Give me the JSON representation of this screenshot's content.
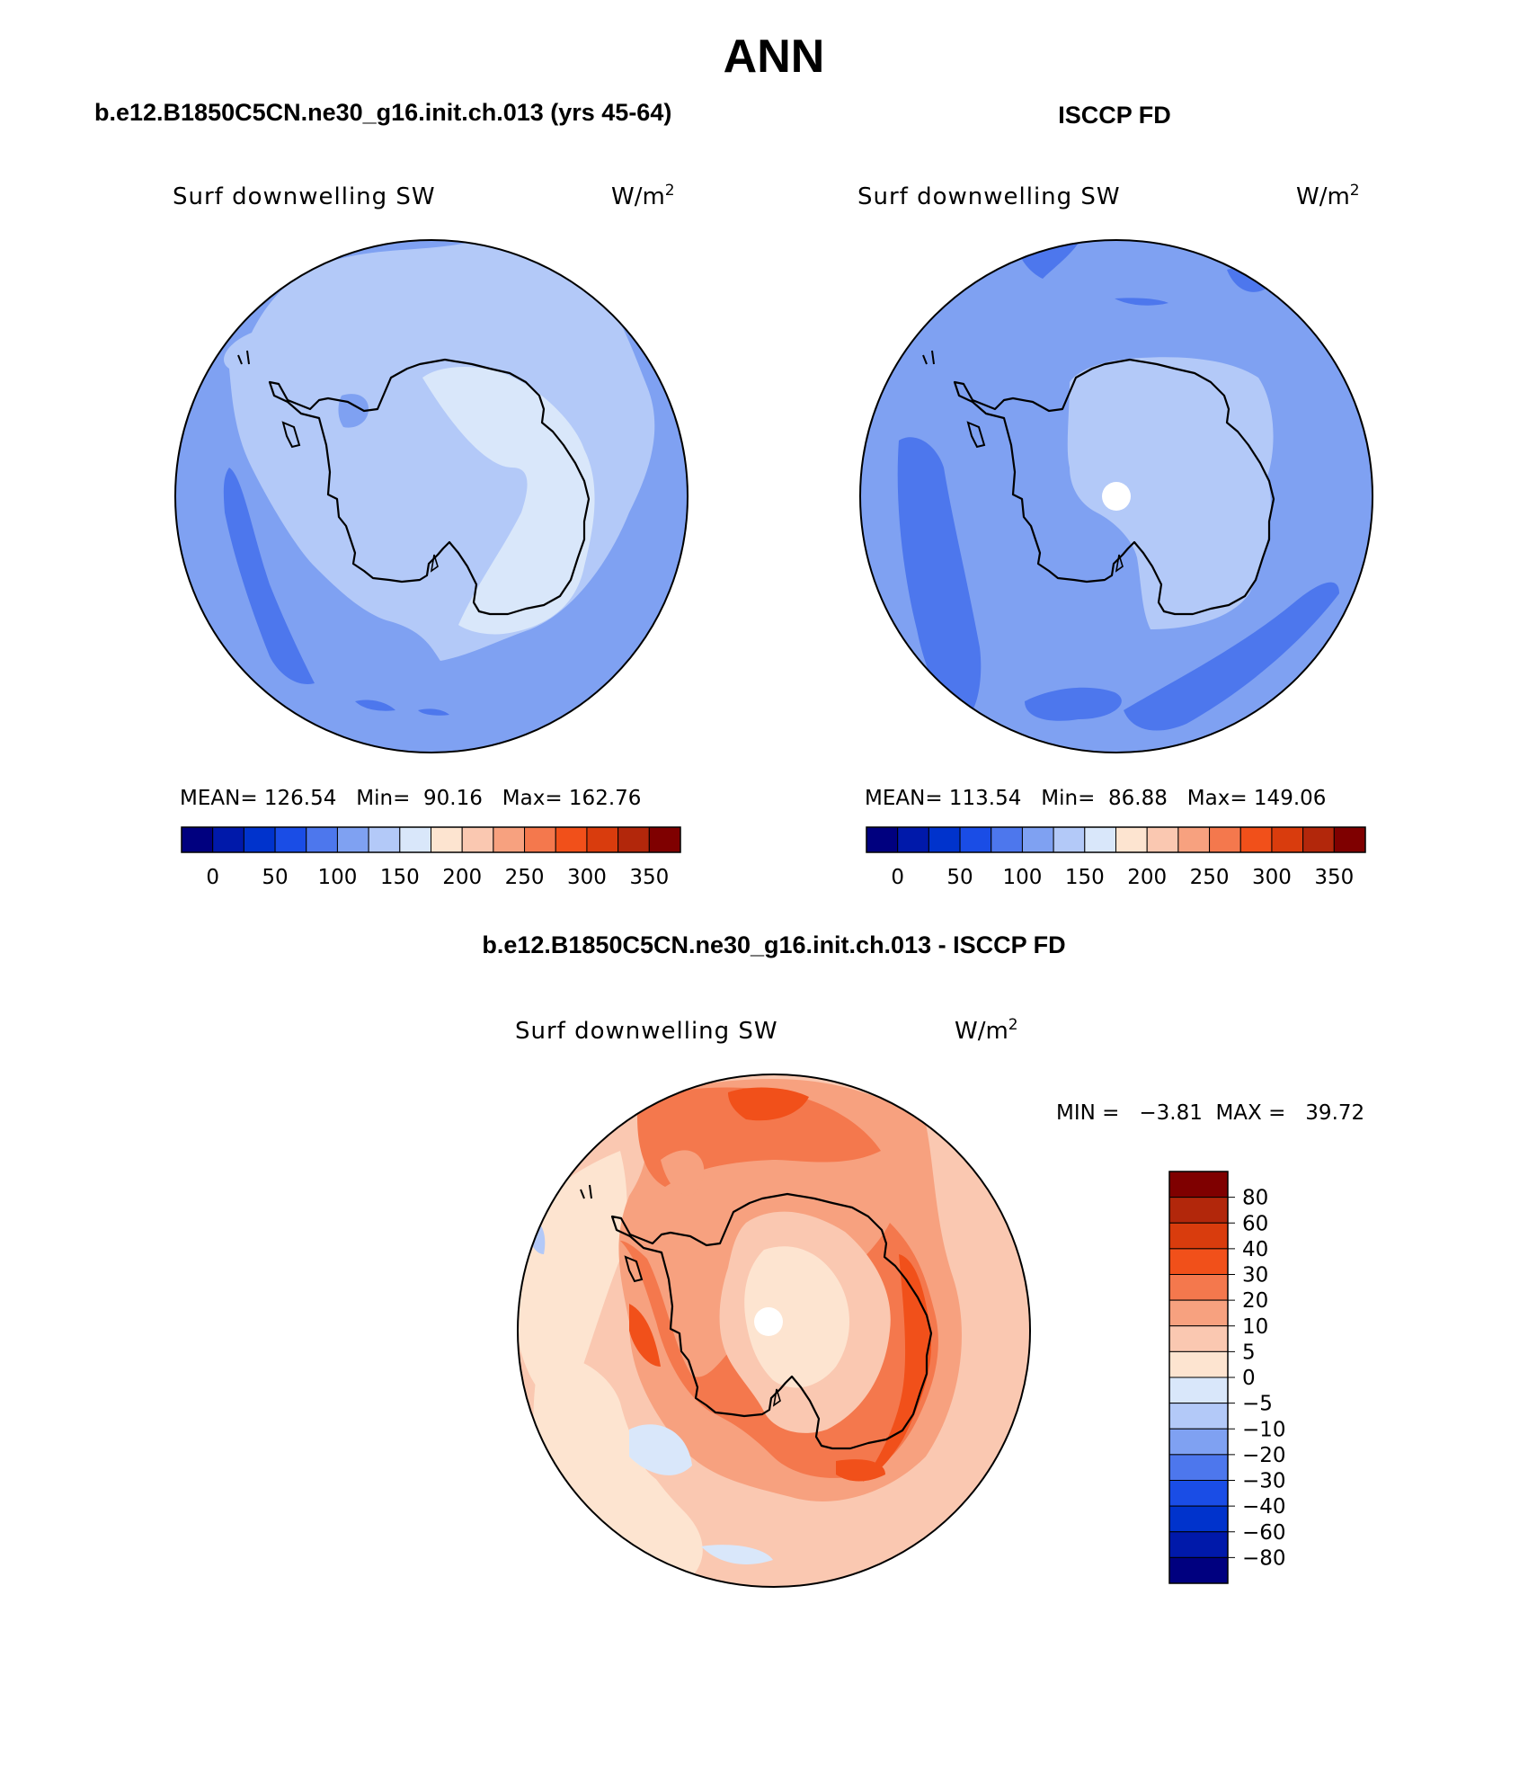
{
  "figure": {
    "title": "ANN",
    "panel_left_title": "b.e12.B1850C5CN.ne30_g16.init.ch.013 (yrs 45-64)",
    "panel_right_title": "ISCCP FD",
    "panel_diff_title": "b.e12.B1850C5CN.ne30_g16.init.ch.013 - ISCCP FD"
  },
  "panels": {
    "left": {
      "variable": "Surf downwelling SW",
      "units": "W/m",
      "units_exp": "2",
      "stats": "MEAN= 126.54   Min=  90.16   Max= 162.76"
    },
    "right": {
      "variable": "Surf downwelling SW",
      "units": "W/m",
      "units_exp": "2",
      "stats": "MEAN= 113.54   Min=  86.88   Max= 149.06"
    },
    "diff": {
      "variable": "Surf downwelling SW",
      "units": "W/m",
      "units_exp": "2",
      "minmax": "MIN =   −3.81  MAX =   39.72"
    }
  },
  "colorbar_abs": {
    "colors": [
      "#00007f",
      "#0019aa",
      "#0033cc",
      "#1a4de6",
      "#4d77ed",
      "#7fa1f2",
      "#b3c9f8",
      "#d9e7fa",
      "#fde4d0",
      "#fac8b1",
      "#f7a17f",
      "#f4784d",
      "#f1501a",
      "#d93c0d",
      "#b2270b",
      "#7f0000"
    ],
    "tick_labels": [
      "0",
      "50",
      "100",
      "150",
      "200",
      "250",
      "300",
      "350"
    ]
  },
  "colorbar_diff": {
    "colors": [
      "#00007f",
      "#0019aa",
      "#0033cc",
      "#1a4de6",
      "#4d77ed",
      "#7fa1f2",
      "#b3c9f8",
      "#d9e7fa",
      "#fde4d0",
      "#fac8b1",
      "#f7a17f",
      "#f4784d",
      "#f1501a",
      "#d93c0d",
      "#b2270b",
      "#7f0000"
    ],
    "tick_labels": [
      "80",
      "60",
      "40",
      "30",
      "20",
      "10",
      "5",
      "0",
      "−5",
      "−10",
      "−20",
      "−30",
      "−40",
      "−60",
      "−80"
    ]
  },
  "map_colors": {
    "ocean_mid": "#7fa1f2",
    "ocean_dark": "#4d77ed",
    "land_light": "#b3c9f8",
    "land_lighter": "#d9e7fa",
    "diff_base": "#fac8b1",
    "diff_mid": "#f7a17f",
    "diff_high": "#f4784d",
    "diff_max": "#f1501a",
    "diff_low": "#fde4d0",
    "diff_neg": "#d9e7fa",
    "diff_neg2": "#b3c9f8",
    "coast": "#000000"
  }
}
